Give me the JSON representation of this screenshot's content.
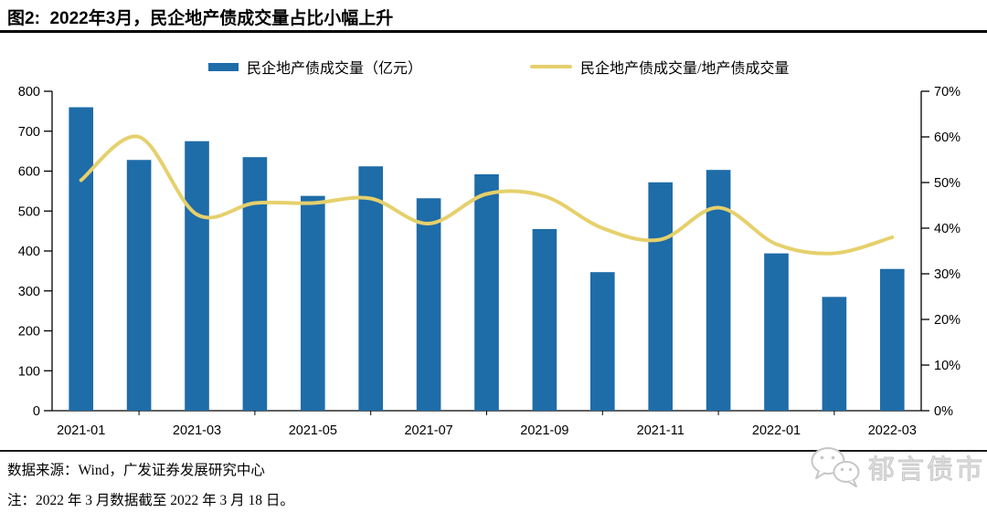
{
  "header": {
    "title": "图2:  2022年3月，民企地产债成交量占比小幅上升"
  },
  "chart_data": {
    "type": "bar+line",
    "categories": [
      "2021-01",
      "2021-02",
      "2021-03",
      "2021-04",
      "2021-05",
      "2021-06",
      "2021-07",
      "2021-08",
      "2021-09",
      "2021-10",
      "2021-11",
      "2021-12",
      "2022-01",
      "2022-02",
      "2022-03"
    ],
    "x_labels_shown": [
      "2021-01",
      "2021-03",
      "2021-05",
      "2021-07",
      "2021-09",
      "2021-11",
      "2022-01",
      "2022-03"
    ],
    "series": [
      {
        "name": "民企地产债成交量（亿元）",
        "type": "bar",
        "axis": "left",
        "color": "#1E6CA8",
        "values": [
          760,
          628,
          675,
          635,
          538,
          612,
          532,
          592,
          455,
          347,
          572,
          603,
          394,
          285,
          355
        ]
      },
      {
        "name": "民企地产债成交量/地产债成交量",
        "type": "line",
        "axis": "right",
        "unit": "%",
        "color": "#E6D06C",
        "values": [
          50.5,
          60,
          43,
          45.5,
          45.5,
          46.5,
          41,
          47.5,
          47,
          40,
          37.5,
          44.5,
          36.5,
          34.5,
          38
        ]
      }
    ],
    "left_axis": {
      "min": 0,
      "max": 800,
      "step": 100,
      "tick_labels": [
        "800",
        "700",
        "600",
        "500",
        "400",
        "300",
        "200",
        "100",
        "0"
      ]
    },
    "right_axis": {
      "min": 0,
      "max": 70,
      "step": 10,
      "tick_labels": [
        "70%",
        "60%",
        "50%",
        "40%",
        "30%",
        "20%",
        "10%",
        "0%"
      ]
    },
    "grid": false,
    "legend_position": "top"
  },
  "footer": {
    "source": "数据来源：Wind，广发证券发展研究中心",
    "note": "注：2022 年 3 月数据截至 2022 年 3 月 18 日。",
    "brand": "郁言债市"
  }
}
